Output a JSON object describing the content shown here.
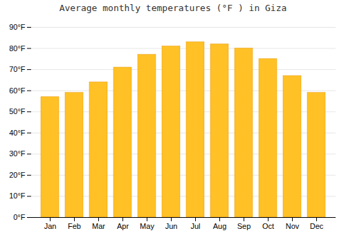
{
  "chart_data": {
    "type": "bar",
    "title": "Average monthly temperatures (°F ) in Giza",
    "categories": [
      "Jan",
      "Feb",
      "Mar",
      "Apr",
      "May",
      "Jun",
      "Jul",
      "Aug",
      "Sep",
      "Oct",
      "Nov",
      "Dec"
    ],
    "values": [
      57,
      59,
      64,
      71,
      77,
      81,
      83,
      82,
      80,
      75,
      67,
      59
    ],
    "color": "#FFC125",
    "ylim": [
      0,
      90
    ],
    "yticks": [
      {
        "value": 0,
        "label": "0°F"
      },
      {
        "value": 10,
        "label": "10°F"
      },
      {
        "value": 20,
        "label": "20°F"
      },
      {
        "value": 30,
        "label": "30°F"
      },
      {
        "value": 40,
        "label": "40°F"
      },
      {
        "value": 50,
        "label": "50°F"
      },
      {
        "value": 60,
        "label": "60°F"
      },
      {
        "value": 70,
        "label": "70°F"
      },
      {
        "value": 80,
        "label": "80°F"
      },
      {
        "value": 90,
        "label": "90°F"
      }
    ],
    "grid": true
  }
}
